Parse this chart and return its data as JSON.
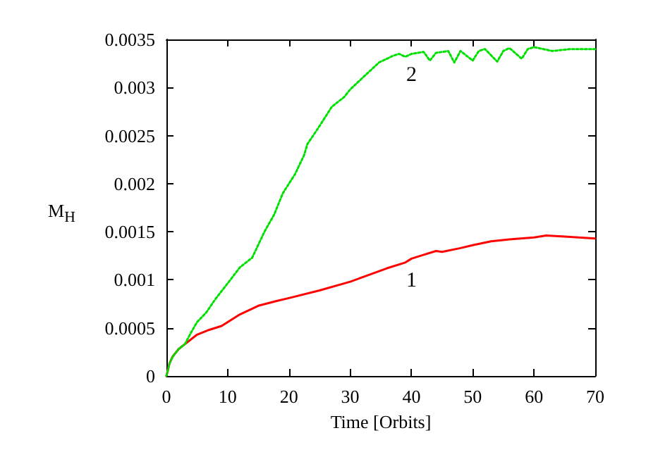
{
  "chart_data": {
    "type": "line",
    "xlabel": "Time [Orbits]",
    "ylabel": "M$_{H}$",
    "xlim": [
      0,
      70
    ],
    "xticks": [
      0,
      10,
      20,
      30,
      40,
      50,
      60,
      70
    ],
    "ylim": [
      0,
      0.0035
    ],
    "yticks": [
      0,
      0.0005,
      0.001,
      0.0015,
      0.002,
      0.0025,
      0.003,
      0.0035
    ],
    "grid": false,
    "legend": false,
    "marker": "none",
    "line_style": "dotted",
    "series": [
      {
        "name": "1",
        "color": "#ff0000",
        "line_style": "solid",
        "x": [
          0,
          0.5,
          1,
          2,
          3,
          5,
          7,
          9,
          10,
          12,
          15,
          18,
          20,
          25,
          30,
          33,
          36,
          39,
          40,
          42,
          44,
          45,
          48,
          50,
          53,
          56,
          60,
          62,
          65,
          70
        ],
        "values": [
          0,
          0.00013,
          0.0002,
          0.00028,
          0.00033,
          0.00043,
          0.00048,
          0.00052,
          0.00056,
          0.00064,
          0.00073,
          0.00078,
          0.00081,
          0.00089,
          0.00098,
          0.00105,
          0.00112,
          0.00118,
          0.00122,
          0.00126,
          0.0013,
          0.00129,
          0.00133,
          0.00136,
          0.0014,
          0.00142,
          0.00144,
          0.00146,
          0.00145,
          0.00143
        ]
      },
      {
        "name": "2",
        "color": "#00e000",
        "x": [
          0,
          0.5,
          1,
          2,
          3,
          4,
          5,
          6.5,
          8,
          10.2,
          12,
          14,
          16,
          17.6,
          19,
          21,
          22.5,
          23,
          25,
          27,
          29,
          30,
          32,
          34.7,
          37,
          38,
          39,
          40,
          42,
          43,
          44,
          46,
          47,
          48,
          50,
          51,
          52,
          54,
          55,
          56,
          58,
          59,
          60,
          63,
          66,
          70
        ],
        "values": [
          0,
          0.00013,
          0.0002,
          0.00028,
          0.00033,
          0.00045,
          0.00056,
          0.00066,
          0.0008,
          0.00098,
          0.00113,
          0.00123,
          0.0015,
          0.00168,
          0.0019,
          0.0021,
          0.0023,
          0.00241,
          0.0026,
          0.0028,
          0.0029,
          0.00298,
          0.0031,
          0.00326,
          0.00333,
          0.00335,
          0.00332,
          0.00335,
          0.00337,
          0.00328,
          0.00336,
          0.00338,
          0.00326,
          0.00338,
          0.00328,
          0.00338,
          0.0034,
          0.00327,
          0.00338,
          0.00341,
          0.0033,
          0.0034,
          0.00342,
          0.00338,
          0.0034,
          0.0034
        ]
      }
    ]
  }
}
